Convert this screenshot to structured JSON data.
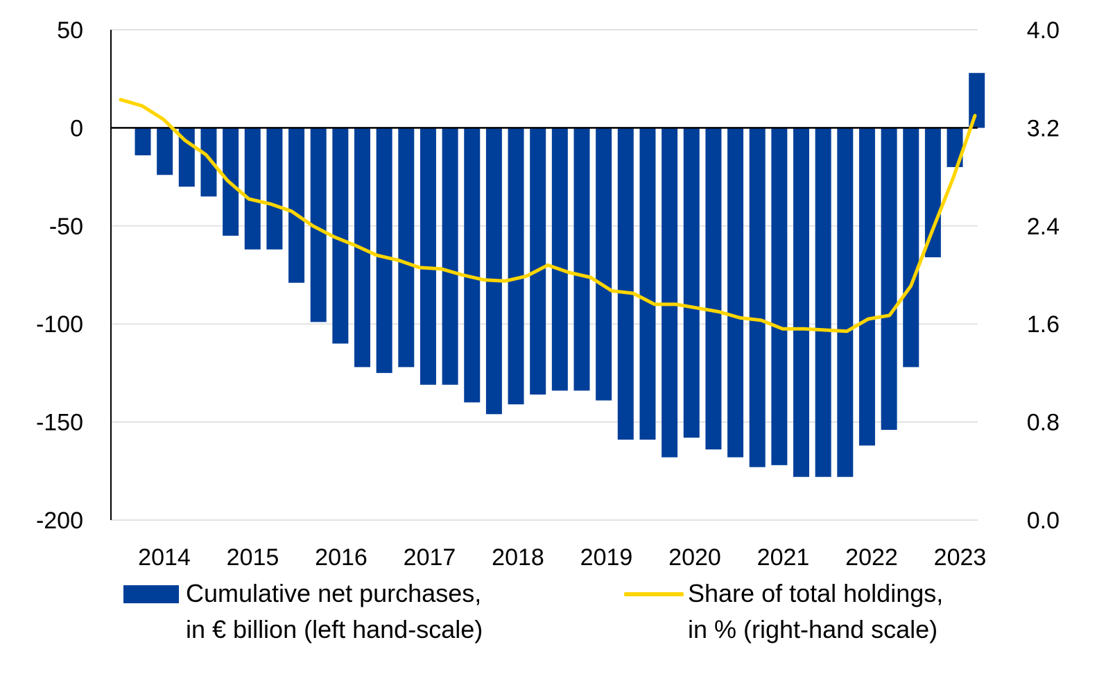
{
  "chart_data": {
    "type": "bar+line",
    "title": "",
    "years": [
      "2014",
      "2015",
      "2016",
      "2017",
      "2018",
      "2019",
      "2020",
      "2021",
      "2022",
      "2023"
    ],
    "y_left": {
      "ylim": [
        -200,
        50
      ],
      "ticks": [
        50,
        0,
        -50,
        -100,
        -150,
        -200
      ],
      "tick_labels": [
        "50",
        "0",
        "-50",
        "-100",
        "-150",
        "-200"
      ]
    },
    "y_right": {
      "ylim": [
        0.0,
        4.0
      ],
      "ticks": [
        4.0,
        3.2,
        2.4,
        1.6,
        0.8,
        0.0
      ],
      "tick_labels": [
        "4.0",
        "3.2",
        "2.4",
        "1.6",
        "0.8",
        "0.0"
      ]
    },
    "grid": true,
    "legend_position": "bottom",
    "series": [
      {
        "name": "Cumulative net purchases, in € billion (left hand-scale)",
        "kind": "bar",
        "axis": "left",
        "color": "#003f99",
        "values": [
          -14,
          -24,
          -30,
          -35,
          -55,
          -62,
          -62,
          -79,
          -99,
          -110,
          -122,
          -125,
          -122,
          -131,
          -131,
          -140,
          -146,
          -141,
          -136,
          -134,
          -134,
          -139,
          -159,
          -159,
          -168,
          -158,
          -164,
          -168,
          -173,
          -172,
          -178,
          -178,
          -178,
          -162,
          -154,
          -122,
          -66,
          -20,
          28
        ]
      },
      {
        "name": "Share of total holdings, in % (right-hand scale)",
        "kind": "line",
        "axis": "right",
        "color": "#ffd500",
        "values": [
          3.43,
          3.38,
          3.27,
          3.1,
          2.98,
          2.77,
          2.62,
          2.58,
          2.52,
          2.4,
          2.31,
          2.24,
          2.16,
          2.12,
          2.06,
          2.05,
          2.0,
          1.96,
          1.95,
          1.99,
          2.08,
          2.02,
          1.98,
          1.87,
          1.85,
          1.76,
          1.76,
          1.73,
          1.7,
          1.65,
          1.63,
          1.56,
          1.56,
          1.55,
          1.54,
          1.64,
          1.67,
          1.91,
          2.36,
          2.8,
          3.3
        ]
      }
    ]
  },
  "legend": {
    "bar_label_line1": "Cumulative net purchases,",
    "bar_label_line2": "in € billion (left hand-scale)",
    "line_label_line1": "Share of total holdings,",
    "line_label_line2": "in % (right-hand scale)"
  }
}
